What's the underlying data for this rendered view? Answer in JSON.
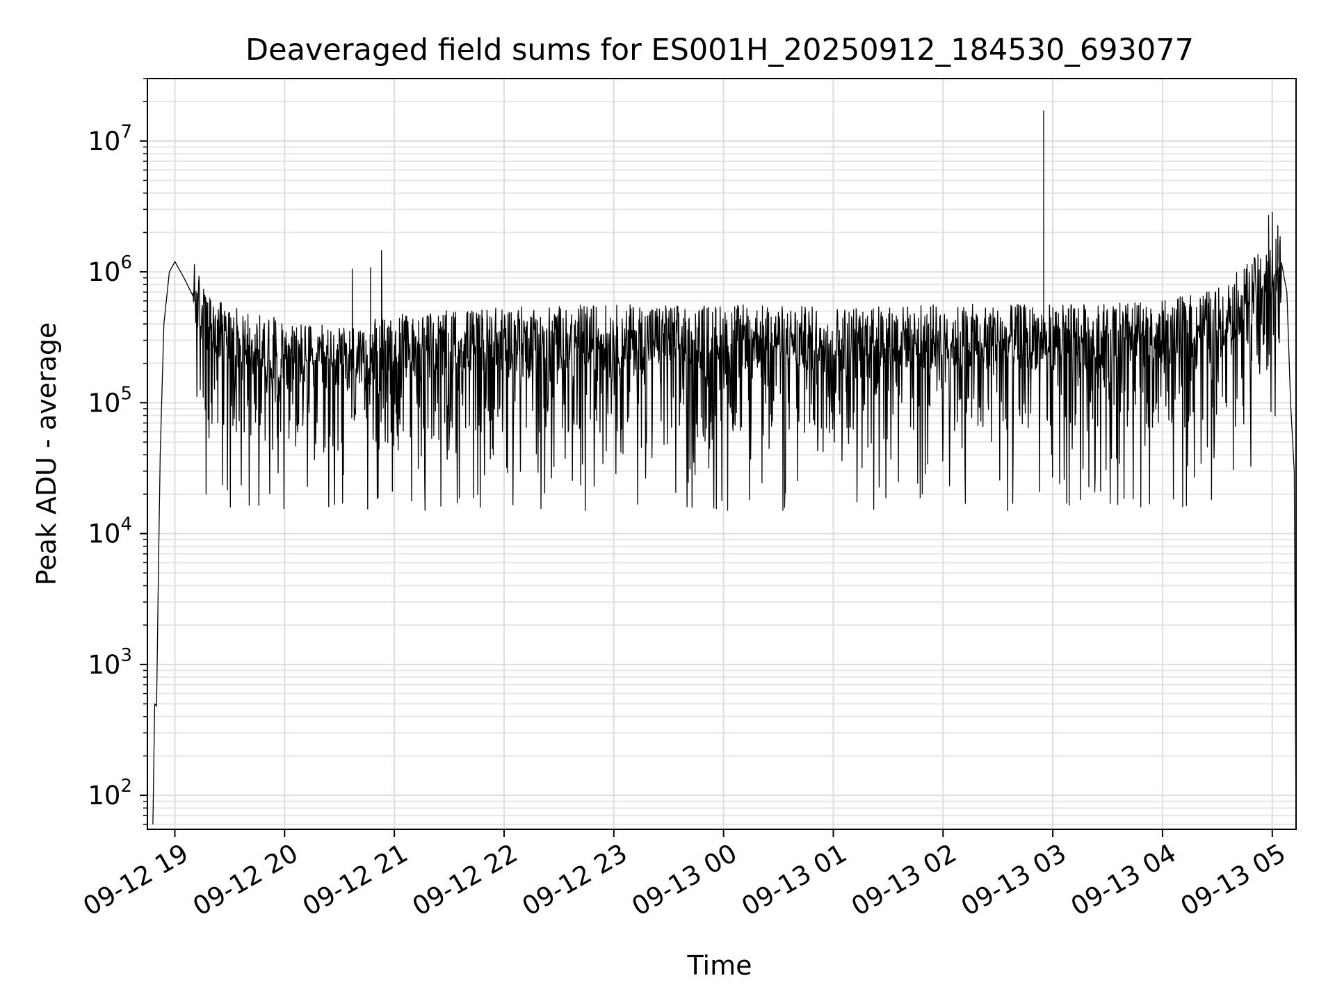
{
  "chart_data": {
    "type": "line",
    "title": "Deaveraged field sums for ES001H_20250912_184530_693077",
    "xlabel": "Time",
    "ylabel": "Peak ADU - average",
    "yscale": "log",
    "grid": true,
    "grid_minor": true,
    "legend": "none",
    "line_color": "#000000",
    "xlim": [
      "2025-09-12 18:45",
      "2025-09-13 05:13"
    ],
    "ylim": [
      55,
      30000000
    ],
    "x_ticks": [
      {
        "value": "2025-09-12 19:00",
        "label": "09-12 19"
      },
      {
        "value": "2025-09-12 20:00",
        "label": "09-12 20"
      },
      {
        "value": "2025-09-12 21:00",
        "label": "09-12 21"
      },
      {
        "value": "2025-09-12 22:00",
        "label": "09-12 22"
      },
      {
        "value": "2025-09-12 23:00",
        "label": "09-12 23"
      },
      {
        "value": "2025-09-13 00:00",
        "label": "09-13 00"
      },
      {
        "value": "2025-09-13 01:00",
        "label": "09-13 01"
      },
      {
        "value": "2025-09-13 02:00",
        "label": "09-13 02"
      },
      {
        "value": "2025-09-13 03:00",
        "label": "09-13 03"
      },
      {
        "value": "2025-09-13 04:00",
        "label": "09-13 04"
      },
      {
        "value": "2025-09-13 05:00",
        "label": "09-13 05"
      }
    ],
    "y_ticks": [
      {
        "value": 100,
        "base": "10",
        "exp": "2"
      },
      {
        "value": 1000,
        "base": "10",
        "exp": "3"
      },
      {
        "value": 10000,
        "base": "10",
        "exp": "4"
      },
      {
        "value": 100000,
        "base": "10",
        "exp": "5"
      },
      {
        "value": 1000000,
        "base": "10",
        "exp": "6"
      },
      {
        "value": 10000000,
        "base": "10",
        "exp": "7"
      }
    ],
    "series": [
      {
        "values": [
          [
            "2025-09-12 18:48",
            60
          ],
          [
            "2025-09-12 18:49",
            500
          ],
          [
            "2025-09-12 18:50",
            480
          ],
          [
            "2025-09-12 18:51",
            5000
          ],
          [
            "2025-09-12 18:52",
            40000
          ],
          [
            "2025-09-12 18:54",
            400000
          ],
          [
            "2025-09-12 18:57",
            1000000
          ],
          [
            "2025-09-12 19:00",
            1200000
          ],
          [
            "2025-09-12 19:05",
            900000
          ],
          [
            "2025-09-12 19:10",
            650000
          ],
          [
            "2025-09-12 19:15",
            450000
          ],
          [
            "2025-09-12 19:20",
            330000
          ],
          [
            "2025-09-12 19:30",
            300000
          ],
          [
            "2025-09-12 20:00",
            230000
          ],
          [
            "2025-09-12 20:30",
            200000
          ],
          [
            "2025-09-12 21:00",
            250000
          ],
          [
            "2025-09-12 21:30",
            270000
          ],
          [
            "2025-09-12 22:00",
            290000
          ],
          [
            "2025-09-12 23:00",
            300000
          ],
          [
            "2025-09-13 00:00",
            300000
          ],
          [
            "2025-09-13 01:00",
            290000
          ],
          [
            "2025-09-13 02:00",
            300000
          ],
          [
            "2025-09-13 03:00",
            300000
          ],
          [
            "2025-09-13 04:00",
            320000
          ],
          [
            "2025-09-13 04:30",
            400000
          ],
          [
            "2025-09-13 04:45",
            600000
          ],
          [
            "2025-09-13 05:00",
            900000
          ],
          [
            "2025-09-13 05:05",
            1100000
          ],
          [
            "2025-09-13 05:08",
            700000
          ],
          [
            "2025-09-13 05:10",
            100000
          ],
          [
            "2025-09-13 05:12",
            30000
          ],
          [
            "2025-09-13 05:13",
            55
          ]
        ],
        "noise": {
          "from": "2025-09-12 19:10",
          "to": "2025-09-13 05:05",
          "typical_low": 30000,
          "typical_high": 550000,
          "floor": 15000
        }
      }
    ],
    "spikes": [
      {
        "x": "2025-09-12 20:37",
        "y": 1050000
      },
      {
        "x": "2025-09-12 20:47",
        "y": 1080000
      },
      {
        "x": "2025-09-12 20:53",
        "y": 1450000
      },
      {
        "x": "2025-09-13 02:55",
        "y": 17000000
      },
      {
        "x": "2025-09-13 04:58",
        "y": 2700000
      },
      {
        "x": "2025-09-13 05:00",
        "y": 2850000
      },
      {
        "x": "2025-09-13 05:03",
        "y": 2250000
      }
    ]
  }
}
